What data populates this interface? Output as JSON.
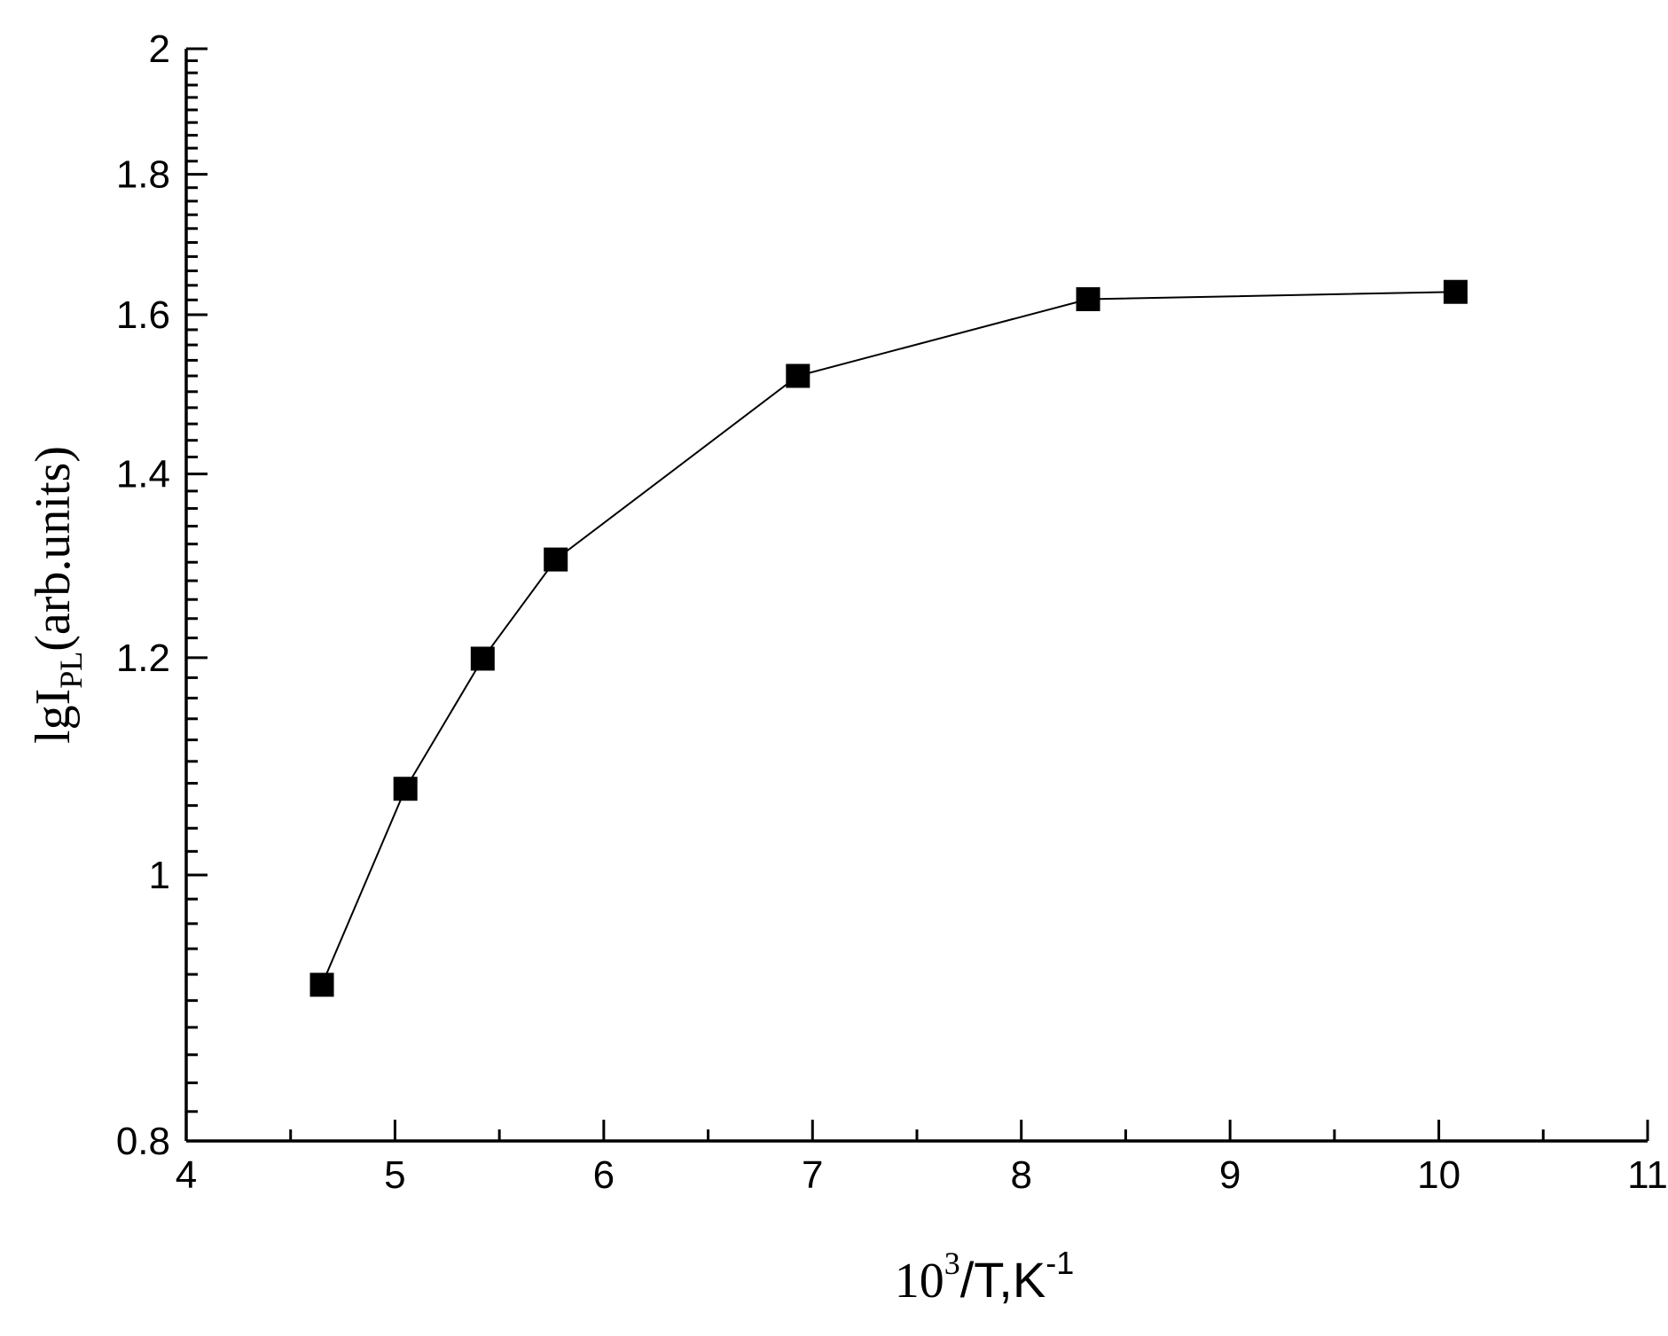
{
  "chart_data": {
    "type": "line",
    "title": "",
    "xlabel": {
      "prefix": "10",
      "sup": "3",
      "suffix": "/T,K",
      "sup2": "-1"
    },
    "ylabel": {
      "prefix": "lgI",
      "sub": "PL",
      "suffix": "(arb.units)"
    },
    "xlim": [
      4,
      11
    ],
    "ylim": [
      0.8,
      2
    ],
    "y_scale": "log",
    "x_ticks": [
      4,
      5,
      6,
      7,
      8,
      9,
      10,
      11
    ],
    "x_tick_labels": [
      "4",
      "5",
      "6",
      "7",
      "8",
      "9",
      "10",
      "11"
    ],
    "y_ticks": [
      0.8,
      1,
      1.2,
      1.4,
      1.6,
      1.8,
      2
    ],
    "y_tick_labels": [
      "0.8",
      "1",
      "1.2",
      "1.4",
      "1.6",
      "1.8",
      "2"
    ],
    "grid": false,
    "marker": "filled-square",
    "line_color": "#000000",
    "marker_color": "#000000",
    "series": [
      {
        "x": [
          4.65,
          5.05,
          5.42,
          5.77,
          6.93,
          8.32,
          10.08
        ],
        "y": [
          0.912,
          1.075,
          1.199,
          1.303,
          1.52,
          1.621,
          1.631
        ]
      }
    ]
  }
}
